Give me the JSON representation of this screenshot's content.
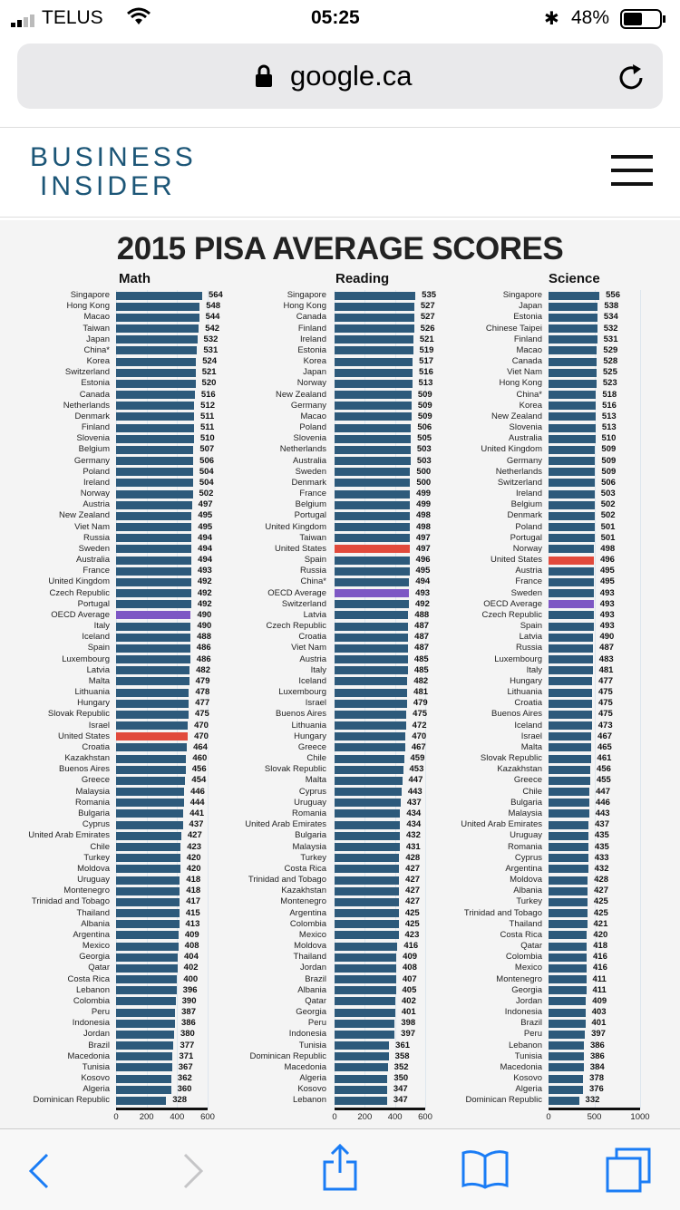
{
  "status_bar": {
    "carrier": "TELUS",
    "time": "05:25",
    "battery": "48%"
  },
  "browser": {
    "url": "google.ca"
  },
  "site": {
    "logo_line1": "BUSINESS",
    "logo_line2": "INSIDER"
  },
  "colors": {
    "bar": "#2d5a7b",
    "us": "#e14a3c",
    "oecd": "#7d57c4",
    "logo": "#1c5677"
  },
  "chart_data": [
    {
      "type": "bar",
      "orientation": "horizontal",
      "title": "2015 PISA AVERAGE SCORES",
      "subject": "Math",
      "xlim": [
        0,
        600
      ],
      "ticks": [
        "0",
        "200",
        "400",
        "600"
      ],
      "categories": [
        "Singapore",
        "Hong Kong",
        "Macao",
        "Taiwan",
        "Japan",
        "China*",
        "Korea",
        "Switzerland",
        "Estonia",
        "Canada",
        "Netherlands",
        "Denmark",
        "Finland",
        "Slovenia",
        "Belgium",
        "Germany",
        "Poland",
        "Ireland",
        "Norway",
        "Austria",
        "New Zealand",
        "Viet Nam",
        "Russia",
        "Sweden",
        "Australia",
        "France",
        "United Kingdom",
        "Czech Republic",
        "Portugal",
        "OECD Average",
        "Italy",
        "Iceland",
        "Spain",
        "Luxembourg",
        "Latvia",
        "Malta",
        "Lithuania",
        "Hungary",
        "Slovak Republic",
        "Israel",
        "United States",
        "Croatia",
        "Kazakhstan",
        "Buenos Aires",
        "Greece",
        "Malaysia",
        "Romania",
        "Bulgaria",
        "Cyprus",
        "United Arab Emirates",
        "Chile",
        "Turkey",
        "Moldova",
        "Uruguay",
        "Montenegro",
        "Trinidad and Tobago",
        "Thailand",
        "Albania",
        "Argentina",
        "Mexico",
        "Georgia",
        "Qatar",
        "Costa Rica",
        "Lebanon",
        "Colombia",
        "Peru",
        "Indonesia",
        "Jordan",
        "Brazil",
        "Macedonia",
        "Tunisia",
        "Kosovo",
        "Algeria",
        "Dominican Republic"
      ],
      "values": [
        564,
        548,
        544,
        542,
        532,
        531,
        524,
        521,
        520,
        516,
        512,
        511,
        511,
        510,
        507,
        506,
        504,
        504,
        502,
        497,
        495,
        495,
        494,
        494,
        494,
        493,
        492,
        492,
        492,
        490,
        490,
        488,
        486,
        486,
        482,
        479,
        478,
        477,
        475,
        470,
        470,
        464,
        460,
        456,
        454,
        446,
        444,
        441,
        437,
        427,
        423,
        420,
        420,
        418,
        418,
        417,
        415,
        413,
        409,
        408,
        404,
        402,
        400,
        396,
        390,
        387,
        386,
        380,
        377,
        371,
        367,
        362,
        360,
        328
      ]
    },
    {
      "type": "bar",
      "orientation": "horizontal",
      "subject": "Reading",
      "xlim": [
        0,
        600
      ],
      "ticks": [
        "0",
        "200",
        "400",
        "600"
      ],
      "categories": [
        "Singapore",
        "Hong Kong",
        "Canada",
        "Finland",
        "Ireland",
        "Estonia",
        "Korea",
        "Japan",
        "Norway",
        "New Zealand",
        "Germany",
        "Macao",
        "Poland",
        "Slovenia",
        "Netherlands",
        "Australia",
        "Sweden",
        "Denmark",
        "France",
        "Belgium",
        "Portugal",
        "United Kingdom",
        "Taiwan",
        "United States",
        "Spain",
        "Russia",
        "China*",
        "OECD Average",
        "Switzerland",
        "Latvia",
        "Czech Republic",
        "Croatia",
        "Viet Nam",
        "Austria",
        "Italy",
        "Iceland",
        "Luxembourg",
        "Israel",
        "Buenos Aires",
        "Lithuania",
        "Hungary",
        "Greece",
        "Chile",
        "Slovak Republic",
        "Malta",
        "Cyprus",
        "Uruguay",
        "Romania",
        "United Arab Emirates",
        "Bulgaria",
        "Malaysia",
        "Turkey",
        "Costa Rica",
        "Trinidad and Tobago",
        "Kazakhstan",
        "Montenegro",
        "Argentina",
        "Colombia",
        "Mexico",
        "Moldova",
        "Thailand",
        "Jordan",
        "Brazil",
        "Albania",
        "Qatar",
        "Georgia",
        "Peru",
        "Indonesia",
        "Tunisia",
        "Dominican Republic",
        "Macedonia",
        "Algeria",
        "Kosovo",
        "Lebanon"
      ],
      "values": [
        535,
        527,
        527,
        526,
        521,
        519,
        517,
        516,
        513,
        509,
        509,
        509,
        506,
        505,
        503,
        503,
        500,
        500,
        499,
        499,
        498,
        498,
        497,
        497,
        496,
        495,
        494,
        493,
        492,
        488,
        487,
        487,
        487,
        485,
        485,
        482,
        481,
        479,
        475,
        472,
        470,
        467,
        459,
        453,
        447,
        443,
        437,
        434,
        434,
        432,
        431,
        428,
        427,
        427,
        427,
        427,
        425,
        425,
        423,
        416,
        409,
        408,
        407,
        405,
        402,
        401,
        398,
        397,
        361,
        358,
        352,
        350,
        347,
        347
      ]
    },
    {
      "type": "bar",
      "orientation": "horizontal",
      "subject": "Science",
      "xlim": [
        0,
        1000
      ],
      "ticks": [
        "0",
        "500",
        "1000"
      ],
      "categories": [
        "Singapore",
        "Japan",
        "Estonia",
        "Chinese Taipei",
        "Finland",
        "Macao",
        "Canada",
        "Viet Nam",
        "Hong Kong",
        "China*",
        "Korea",
        "New Zealand",
        "Slovenia",
        "Australia",
        "United Kingdom",
        "Germany",
        "Netherlands",
        "Switzerland",
        "Ireland",
        "Belgium",
        "Denmark",
        "Poland",
        "Portugal",
        "Norway",
        "United States",
        "Austria",
        "France",
        "Sweden",
        "OECD Average",
        "Czech Republic",
        "Spain",
        "Latvia",
        "Russia",
        "Luxembourg",
        "Italy",
        "Hungary",
        "Lithuania",
        "Croatia",
        "Buenos Aires",
        "Iceland",
        "Israel",
        "Malta",
        "Slovak Republic",
        "Kazakhstan",
        "Greece",
        "Chile",
        "Bulgaria",
        "Malaysia",
        "United Arab Emirates",
        "Uruguay",
        "Romania",
        "Cyprus",
        "Argentina",
        "Moldova",
        "Albania",
        "Turkey",
        "Trinidad and Tobago",
        "Thailand",
        "Costa Rica",
        "Qatar",
        "Colombia",
        "Mexico",
        "Montenegro",
        "Georgia",
        "Jordan",
        "Indonesia",
        "Brazil",
        "Peru",
        "Lebanon",
        "Tunisia",
        "Macedonia",
        "Kosovo",
        "Algeria",
        "Dominican Republic"
      ],
      "values": [
        556,
        538,
        534,
        532,
        531,
        529,
        528,
        525,
        523,
        518,
        516,
        513,
        513,
        510,
        509,
        509,
        509,
        506,
        503,
        502,
        502,
        501,
        501,
        498,
        496,
        495,
        495,
        493,
        493,
        493,
        493,
        490,
        487,
        483,
        481,
        477,
        475,
        475,
        475,
        473,
        467,
        465,
        461,
        456,
        455,
        447,
        446,
        443,
        437,
        435,
        435,
        433,
        432,
        428,
        427,
        425,
        425,
        421,
        420,
        418,
        416,
        416,
        411,
        411,
        409,
        403,
        401,
        397,
        386,
        386,
        384,
        378,
        376,
        332
      ]
    }
  ]
}
